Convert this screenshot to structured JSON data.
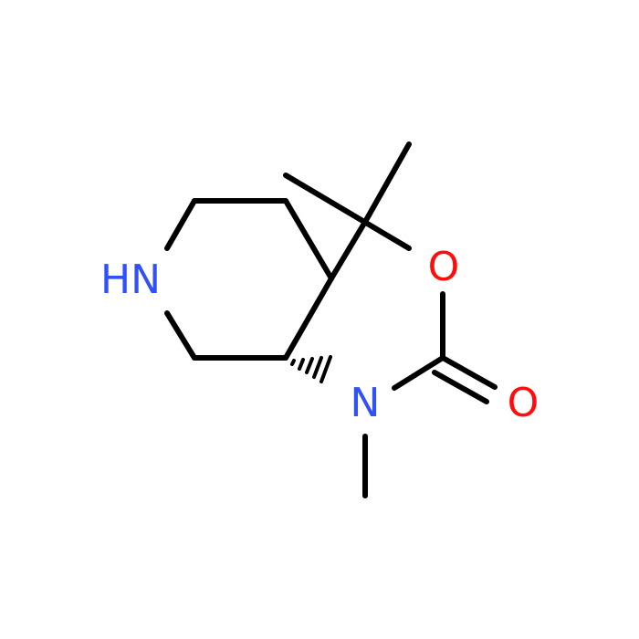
{
  "atoms": [
    {
      "label": "HN"
    },
    {
      "label": "O"
    },
    {
      "label": "O"
    },
    {
      "label": "N"
    }
  ]
}
